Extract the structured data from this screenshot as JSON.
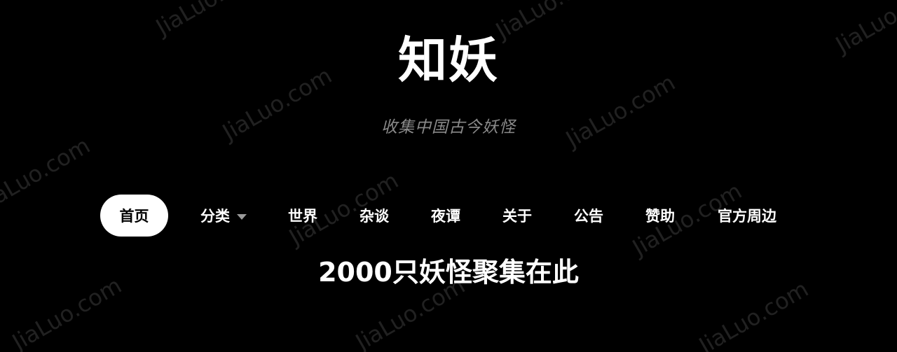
{
  "site": {
    "title": "知妖",
    "subtitle": "收集中国古今妖怪"
  },
  "nav": {
    "items": [
      {
        "label": "首页",
        "active": true
      },
      {
        "label": "分类",
        "has_dropdown": true
      },
      {
        "label": "世界"
      },
      {
        "label": "杂谈"
      },
      {
        "label": "夜谭"
      },
      {
        "label": "关于"
      },
      {
        "label": "公告"
      },
      {
        "label": "赞助"
      },
      {
        "label": "官方周边"
      }
    ],
    "dropdown_icon": "caret-down-icon"
  },
  "hero": {
    "heading": "2000只妖怪聚集在此"
  },
  "watermark": {
    "text": "JiaLuo.com"
  },
  "colors": {
    "background": "#000000",
    "text": "#ffffff",
    "subtitle": "#8a8a8a",
    "active_pill_bg": "#ffffff",
    "active_pill_text": "#000000"
  }
}
